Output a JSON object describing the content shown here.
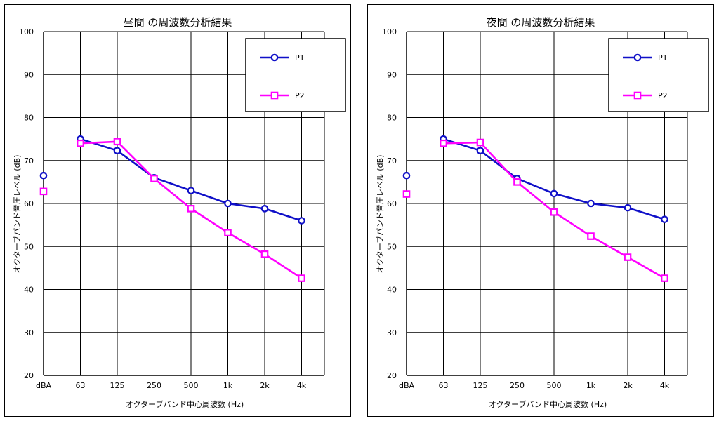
{
  "chart_data": [
    {
      "type": "line",
      "title": "昼間 の周波数分析結果",
      "xlabel": "オクターブバンド中心周波数 (Hz)",
      "ylabel": "オクターブバンド音圧レベル (dB)",
      "categories": [
        "dBA",
        "63",
        "125",
        "250",
        "500",
        "1k",
        "2k",
        "4k"
      ],
      "yticks": [
        20,
        30,
        40,
        50,
        60,
        70,
        80,
        90,
        100
      ],
      "ylim": [
        20,
        100
      ],
      "grid": true,
      "legend_position": "top-right",
      "series": [
        {
          "name": "P1",
          "color": "#1010c8",
          "marker": "circle",
          "values": [
            66.5,
            75.0,
            72.3,
            66.0,
            63.0,
            60.0,
            58.8,
            56.0
          ]
        },
        {
          "name": "P2",
          "color": "#ff00ff",
          "marker": "square",
          "values": [
            62.8,
            74.0,
            74.4,
            65.8,
            58.8,
            53.2,
            48.2,
            42.6
          ]
        }
      ]
    },
    {
      "type": "line",
      "title": "夜間 の周波数分析結果",
      "xlabel": "オクターブバンド中心周波数 (Hz)",
      "ylabel": "オクターブバンド音圧レベル (dB)",
      "categories": [
        "dBA",
        "63",
        "125",
        "250",
        "500",
        "1k",
        "2k",
        "4k"
      ],
      "yticks": [
        20,
        30,
        40,
        50,
        60,
        70,
        80,
        90,
        100
      ],
      "ylim": [
        20,
        100
      ],
      "grid": true,
      "legend_position": "top-right",
      "series": [
        {
          "name": "P1",
          "color": "#1010c8",
          "marker": "circle",
          "values": [
            66.5,
            75.0,
            72.3,
            65.8,
            62.3,
            60.0,
            59.0,
            56.3
          ]
        },
        {
          "name": "P2",
          "color": "#ff00ff",
          "marker": "square",
          "values": [
            62.2,
            74.0,
            74.2,
            65.0,
            58.0,
            52.4,
            47.5,
            42.6
          ]
        }
      ]
    }
  ]
}
